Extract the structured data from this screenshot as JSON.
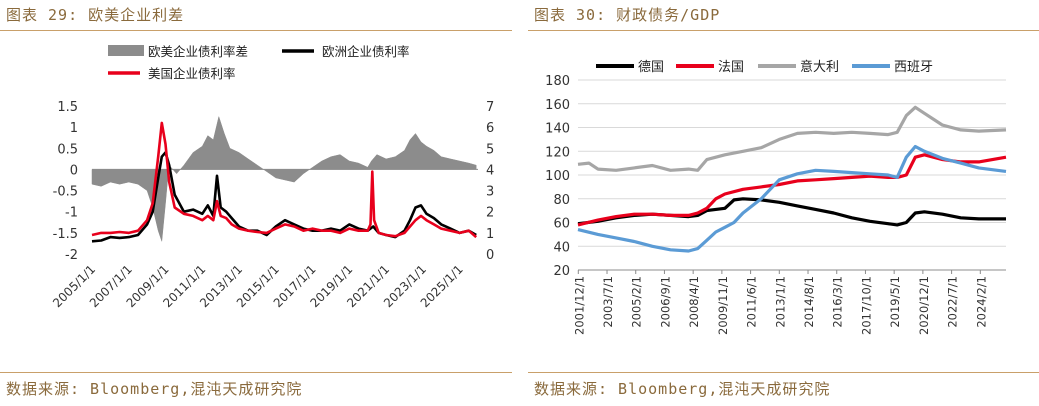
{
  "left": {
    "title": "图表 29:  欧美企业利差",
    "source": "数据来源: Bloomberg,混沌天成研究院"
  },
  "right": {
    "title": "图表 30: 财政债务/GDP",
    "source": "数据来源: Bloomberg,混沌天成研究院"
  },
  "chart_data": [
    {
      "type": "line",
      "title": "",
      "legend_position": "top",
      "x_ticks": [
        "2005/1/1",
        "2007/1/1",
        "2009/1/1",
        "2011/1/1",
        "2013/1/1",
        "2015/1/1",
        "2017/1/1",
        "2019/1/1",
        "2021/1/1",
        "2023/1/1",
        "2025/1/1"
      ],
      "x_range": [
        2005.0,
        2026.0
      ],
      "ylim_left": [
        -2,
        1.5
      ],
      "yticks_left": [
        "1.5",
        "1",
        "0.5",
        "0",
        "-0.5",
        "-1",
        "-1.5",
        "-2"
      ],
      "ylim_right": [
        0,
        7
      ],
      "yticks_right": [
        "7",
        "6",
        "5",
        "4",
        "3",
        "2",
        "1",
        "0"
      ],
      "series": [
        {
          "name": "欧美企业债利率差",
          "kind": "area",
          "axis": "left",
          "color": "#8c8c8c",
          "x": [
            2005.0,
            2005.5,
            2006.0,
            2006.5,
            2007.0,
            2007.5,
            2008.0,
            2008.3,
            2008.6,
            2008.8,
            2009.0,
            2009.1,
            2009.3,
            2009.6,
            2010.0,
            2010.5,
            2011.0,
            2011.3,
            2011.6,
            2011.9,
            2012.2,
            2012.5,
            2013.0,
            2013.5,
            2014.0,
            2014.5,
            2015.0,
            2015.5,
            2016.0,
            2016.5,
            2017.0,
            2017.5,
            2018.0,
            2018.5,
            2019.0,
            2019.5,
            2020.0,
            2020.2,
            2020.5,
            2021.0,
            2021.5,
            2022.0,
            2022.3,
            2022.6,
            2022.9,
            2023.2,
            2023.6,
            2024.0,
            2024.5,
            2025.0,
            2025.5,
            2025.9
          ],
          "y": [
            -0.35,
            -0.4,
            -0.3,
            -0.35,
            -0.3,
            -0.35,
            -0.5,
            -0.9,
            -1.45,
            -1.7,
            -0.8,
            -0.3,
            0.05,
            -0.1,
            0.1,
            0.4,
            0.55,
            0.8,
            0.7,
            1.25,
            0.85,
            0.5,
            0.4,
            0.25,
            0.1,
            -0.05,
            -0.2,
            -0.25,
            -0.3,
            -0.1,
            0.05,
            0.2,
            0.3,
            0.35,
            0.2,
            0.15,
            0.05,
            0.2,
            0.35,
            0.25,
            0.3,
            0.45,
            0.7,
            0.85,
            0.65,
            0.55,
            0.45,
            0.3,
            0.25,
            0.2,
            0.15,
            0.1
          ]
        },
        {
          "name": "欧洲企业债利率",
          "kind": "line",
          "axis": "left",
          "color": "#000000",
          "x": [
            2005.0,
            2005.5,
            2006.0,
            2006.5,
            2007.0,
            2007.5,
            2008.0,
            2008.3,
            2008.6,
            2008.8,
            2009.0,
            2009.2,
            2009.5,
            2010.0,
            2010.5,
            2011.0,
            2011.3,
            2011.6,
            2011.8,
            2012.0,
            2012.3,
            2012.6,
            2013.0,
            2013.5,
            2014.0,
            2014.5,
            2015.0,
            2015.5,
            2016.0,
            2016.5,
            2017.0,
            2017.5,
            2018.0,
            2018.5,
            2019.0,
            2019.5,
            2020.0,
            2020.3,
            2020.6,
            2021.0,
            2021.5,
            2022.0,
            2022.3,
            2022.6,
            2022.9,
            2023.2,
            2023.6,
            2024.0,
            2024.5,
            2025.0,
            2025.5,
            2025.9
          ],
          "y": [
            -1.7,
            -1.68,
            -1.6,
            -1.62,
            -1.6,
            -1.55,
            -1.3,
            -1.0,
            -0.2,
            0.3,
            0.4,
            0.1,
            -0.6,
            -1.0,
            -0.95,
            -1.05,
            -0.85,
            -1.1,
            -0.15,
            -0.9,
            -1.0,
            -1.15,
            -1.35,
            -1.45,
            -1.45,
            -1.55,
            -1.35,
            -1.2,
            -1.3,
            -1.4,
            -1.45,
            -1.45,
            -1.4,
            -1.45,
            -1.3,
            -1.4,
            -1.45,
            -1.35,
            -1.5,
            -1.55,
            -1.6,
            -1.45,
            -1.2,
            -0.9,
            -0.85,
            -1.05,
            -1.15,
            -1.3,
            -1.4,
            -1.5,
            -1.45,
            -1.55
          ]
        },
        {
          "name": "美国企业债利率",
          "kind": "line",
          "axis": "left",
          "color": "#e8001c",
          "x": [
            2005.0,
            2005.5,
            2006.0,
            2006.5,
            2007.0,
            2007.5,
            2008.0,
            2008.3,
            2008.6,
            2008.8,
            2009.0,
            2009.2,
            2009.5,
            2010.0,
            2010.5,
            2011.0,
            2011.3,
            2011.6,
            2011.8,
            2012.0,
            2012.3,
            2012.6,
            2013.0,
            2013.5,
            2014.0,
            2014.5,
            2015.0,
            2015.5,
            2016.0,
            2016.5,
            2017.0,
            2017.5,
            2018.0,
            2018.5,
            2019.0,
            2019.5,
            2020.0,
            2020.15,
            2020.25,
            2020.35,
            2020.6,
            2021.0,
            2021.5,
            2022.0,
            2022.3,
            2022.6,
            2022.9,
            2023.2,
            2023.6,
            2024.0,
            2024.5,
            2025.0,
            2025.5,
            2025.9
          ],
          "y": [
            -1.55,
            -1.5,
            -1.5,
            -1.48,
            -1.5,
            -1.45,
            -1.2,
            -0.8,
            0.3,
            1.1,
            0.6,
            -0.3,
            -0.9,
            -1.05,
            -1.1,
            -1.2,
            -1.1,
            -1.2,
            -0.75,
            -1.1,
            -1.15,
            -1.3,
            -1.4,
            -1.45,
            -1.48,
            -1.5,
            -1.4,
            -1.3,
            -1.35,
            -1.45,
            -1.4,
            -1.45,
            -1.45,
            -1.5,
            -1.4,
            -1.45,
            -1.45,
            -1.3,
            -0.05,
            -1.2,
            -1.5,
            -1.55,
            -1.58,
            -1.5,
            -1.35,
            -1.2,
            -1.1,
            -1.2,
            -1.3,
            -1.4,
            -1.45,
            -1.5,
            -1.45,
            -1.6
          ]
        }
      ]
    },
    {
      "type": "line",
      "title": "",
      "legend_position": "top",
      "x_ticks": [
        "2001/12/1",
        "2003/7/1",
        "2005/2/1",
        "2006/9/1",
        "2008/4/1",
        "2009/11/1",
        "2011/6/1",
        "2013/1/1",
        "2014/8/1",
        "2016/3/1",
        "2017/10/1",
        "2019/5/1",
        "2020/12/1",
        "2022/7/1",
        "2024/2/1"
      ],
      "x_range": [
        2001.9,
        2025.5
      ],
      "ylim": [
        20,
        180
      ],
      "yticks": [
        "180",
        "160",
        "140",
        "120",
        "100",
        "80",
        "60",
        "40",
        "20"
      ],
      "series": [
        {
          "name": "德国",
          "color": "#000000",
          "x": [
            2001.9,
            2003,
            2004,
            2005,
            2006,
            2007,
            2008,
            2008.5,
            2009,
            2009.5,
            2010,
            2010.5,
            2011,
            2012,
            2013,
            2014,
            2015,
            2016,
            2017,
            2018,
            2019,
            2019.5,
            2020,
            2020.5,
            2021,
            2022,
            2023,
            2024,
            2025.5
          ],
          "y": [
            59,
            61,
            64,
            66,
            67,
            66,
            65,
            66,
            70,
            71,
            72,
            79,
            80,
            79,
            77,
            74,
            71,
            68,
            64,
            61,
            59,
            58,
            60,
            68,
            69,
            67,
            64,
            63,
            63
          ]
        },
        {
          "name": "法国",
          "color": "#e8001c",
          "x": [
            2001.9,
            2003,
            2004,
            2005,
            2006,
            2007,
            2008,
            2008.5,
            2009,
            2009.5,
            2010,
            2011,
            2012,
            2013,
            2014,
            2015,
            2016,
            2017,
            2018,
            2019,
            2019.5,
            2020,
            2020.5,
            2021,
            2022,
            2023,
            2024,
            2025.5
          ],
          "y": [
            58,
            62,
            65,
            67,
            67,
            66,
            66,
            68,
            72,
            80,
            84,
            88,
            90,
            92,
            95,
            96,
            97,
            98,
            99,
            98,
            98,
            100,
            115,
            117,
            113,
            111,
            111,
            115
          ]
        },
        {
          "name": "意大利",
          "color": "#a6a6a6",
          "x": [
            2001.9,
            2002.5,
            2003,
            2004,
            2005,
            2006,
            2007,
            2008,
            2008.5,
            2009,
            2010,
            2011,
            2012,
            2013,
            2014,
            2015,
            2016,
            2017,
            2018,
            2019,
            2019.5,
            2020,
            2020.5,
            2021,
            2022,
            2022.5,
            2023,
            2024,
            2025.5
          ],
          "y": [
            109,
            110,
            105,
            104,
            106,
            108,
            104,
            105,
            104,
            113,
            117,
            120,
            123,
            130,
            135,
            136,
            135,
            136,
            135,
            134,
            136,
            150,
            157,
            152,
            142,
            140,
            138,
            137,
            138
          ]
        },
        {
          "name": "西班牙",
          "color": "#5b9bd5",
          "x": [
            2001.9,
            2003,
            2004,
            2005,
            2006,
            2007,
            2008,
            2008.5,
            2009,
            2009.5,
            2010,
            2010.5,
            2011,
            2012,
            2013,
            2014,
            2015,
            2016,
            2017,
            2018,
            2019,
            2019.5,
            2020,
            2020.5,
            2021,
            2022,
            2023,
            2024,
            2025.5
          ],
          "y": [
            54,
            50,
            47,
            44,
            40,
            37,
            36,
            38,
            45,
            52,
            56,
            60,
            68,
            80,
            96,
            101,
            104,
            103,
            102,
            101,
            100,
            98,
            115,
            124,
            120,
            114,
            110,
            106,
            103
          ]
        }
      ]
    }
  ]
}
